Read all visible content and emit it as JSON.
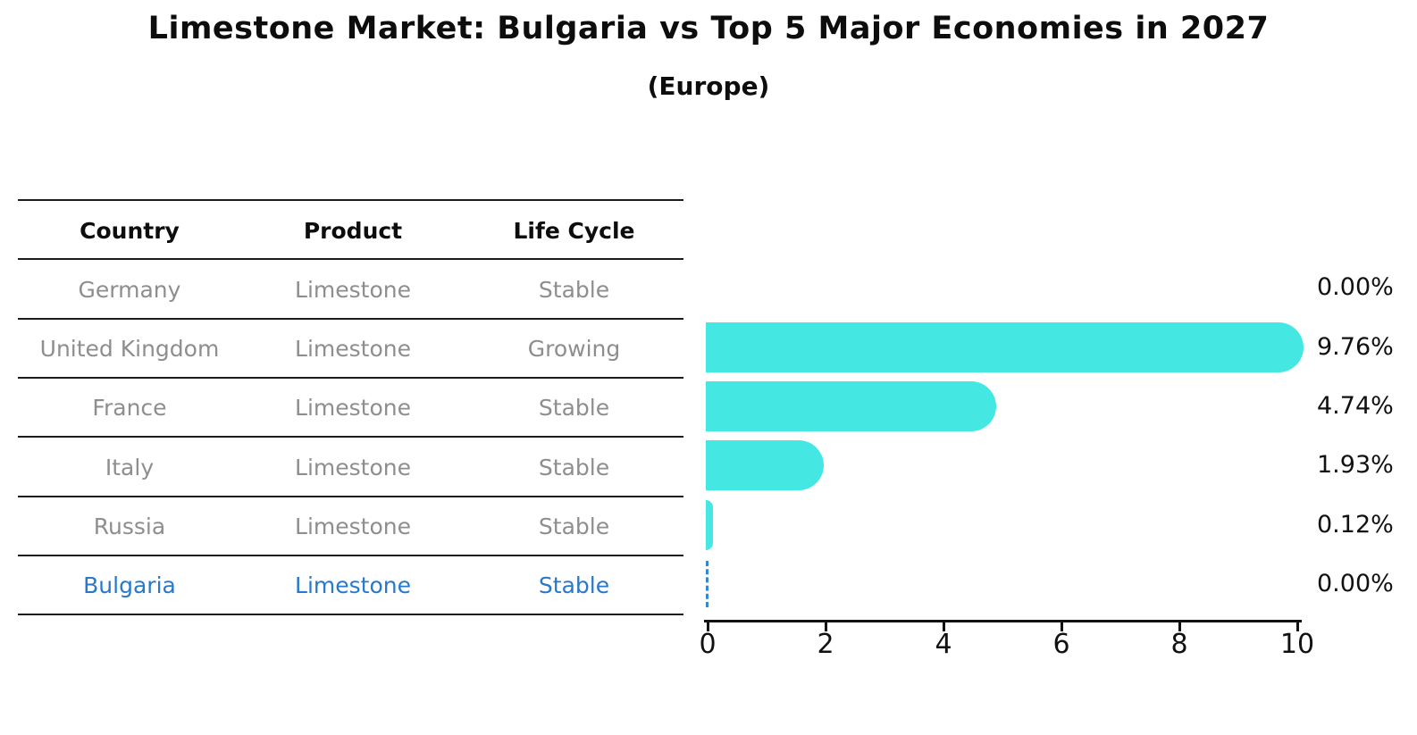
{
  "title": "Limestone Market: Bulgaria vs Top 5 Major Economies in 2027",
  "subtitle": "(Europe)",
  "table": {
    "headers": [
      "Country",
      "Product",
      "Life Cycle"
    ],
    "rows": [
      {
        "country": "Germany",
        "product": "Limestone",
        "life_cycle": "Stable",
        "highlight": false
      },
      {
        "country": "United Kingdom",
        "product": "Limestone",
        "life_cycle": "Growing",
        "highlight": false
      },
      {
        "country": "France",
        "product": "Limestone",
        "life_cycle": "Stable",
        "highlight": false
      },
      {
        "country": "Italy",
        "product": "Limestone",
        "life_cycle": "Stable",
        "highlight": false
      },
      {
        "country": "Russia",
        "product": "Limestone",
        "life_cycle": "Stable",
        "highlight": false
      },
      {
        "country": "Bulgaria",
        "product": "Limestone",
        "life_cycle": "Stable",
        "highlight": true
      }
    ]
  },
  "chart_data": {
    "type": "bar",
    "orientation": "horizontal",
    "title": "Limestone Market: Bulgaria vs Top 5 Major Economies in 2027",
    "subtitle": "(Europe)",
    "categories": [
      "Germany",
      "United Kingdom",
      "France",
      "Italy",
      "Russia",
      "Bulgaria"
    ],
    "values": [
      0.0,
      9.76,
      4.74,
      1.93,
      0.12,
      0.0
    ],
    "value_labels": [
      "0.00%",
      "9.76%",
      "4.74%",
      "1.93%",
      "0.12%",
      "0.00%"
    ],
    "xlabel": "",
    "ylabel": "",
    "xlim": [
      0,
      10
    ],
    "x_ticks": [
      0,
      2,
      4,
      6,
      8,
      10
    ],
    "grid": false,
    "legend": "none",
    "bar_color": "#45e7e2",
    "highlight_color": "#2878cb",
    "highlight_category": "Bulgaria"
  },
  "colors": {
    "bar": "#45e7e2",
    "highlight_text": "#2878cb",
    "row_text": "#8e8e8e",
    "header_text": "#0d0d0d",
    "axis": "#111111"
  }
}
